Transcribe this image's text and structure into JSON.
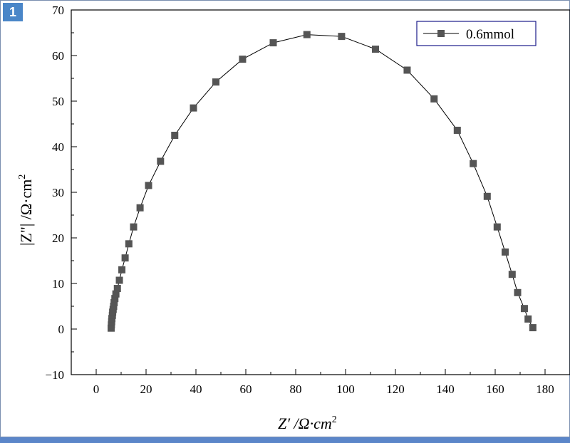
{
  "page_badge": "1",
  "chart_data": {
    "type": "line",
    "xlabel_main": "Z′ /Ω·cm",
    "xlabel_sup": "2",
    "ylabel_main": "|Z\"| /Ω·cm",
    "ylabel_sup": "2",
    "xlim": [
      -10,
      190
    ],
    "ylim": [
      -10,
      70
    ],
    "xticks": [
      0,
      20,
      40,
      60,
      80,
      100,
      120,
      140,
      160,
      180
    ],
    "yticks": [
      -10,
      0,
      10,
      20,
      30,
      40,
      50,
      60,
      70
    ],
    "legend_position": "top-right",
    "marker": "square",
    "line_color": "#000000",
    "marker_color": "#555555",
    "series": [
      {
        "name": "0.6mmol",
        "x": [
          6.0,
          6.1,
          6.2,
          6.3,
          6.5,
          6.6,
          6.8,
          7.0,
          7.2,
          7.5,
          7.9,
          8.5,
          9.3,
          10.3,
          11.6,
          13.1,
          15.0,
          17.6,
          21.0,
          25.8,
          31.5,
          39.0,
          48.0,
          58.7,
          71.0,
          84.5,
          98.4,
          112.0,
          124.7,
          135.5,
          144.8,
          151.2,
          156.8,
          160.8,
          164.0,
          166.8,
          169.0,
          171.7,
          173.2,
          175.1
        ],
        "y": [
          0.2,
          0.9,
          1.6,
          2.3,
          3.0,
          3.7,
          4.3,
          5.0,
          5.8,
          6.7,
          7.7,
          8.9,
          10.7,
          13.0,
          15.6,
          18.7,
          22.4,
          26.6,
          31.5,
          36.8,
          42.5,
          48.5,
          54.2,
          59.2,
          62.8,
          64.6,
          64.2,
          61.4,
          56.8,
          50.5,
          43.6,
          36.3,
          29.1,
          22.4,
          16.9,
          12.0,
          8.0,
          4.5,
          2.2,
          0.3
        ]
      }
    ]
  }
}
